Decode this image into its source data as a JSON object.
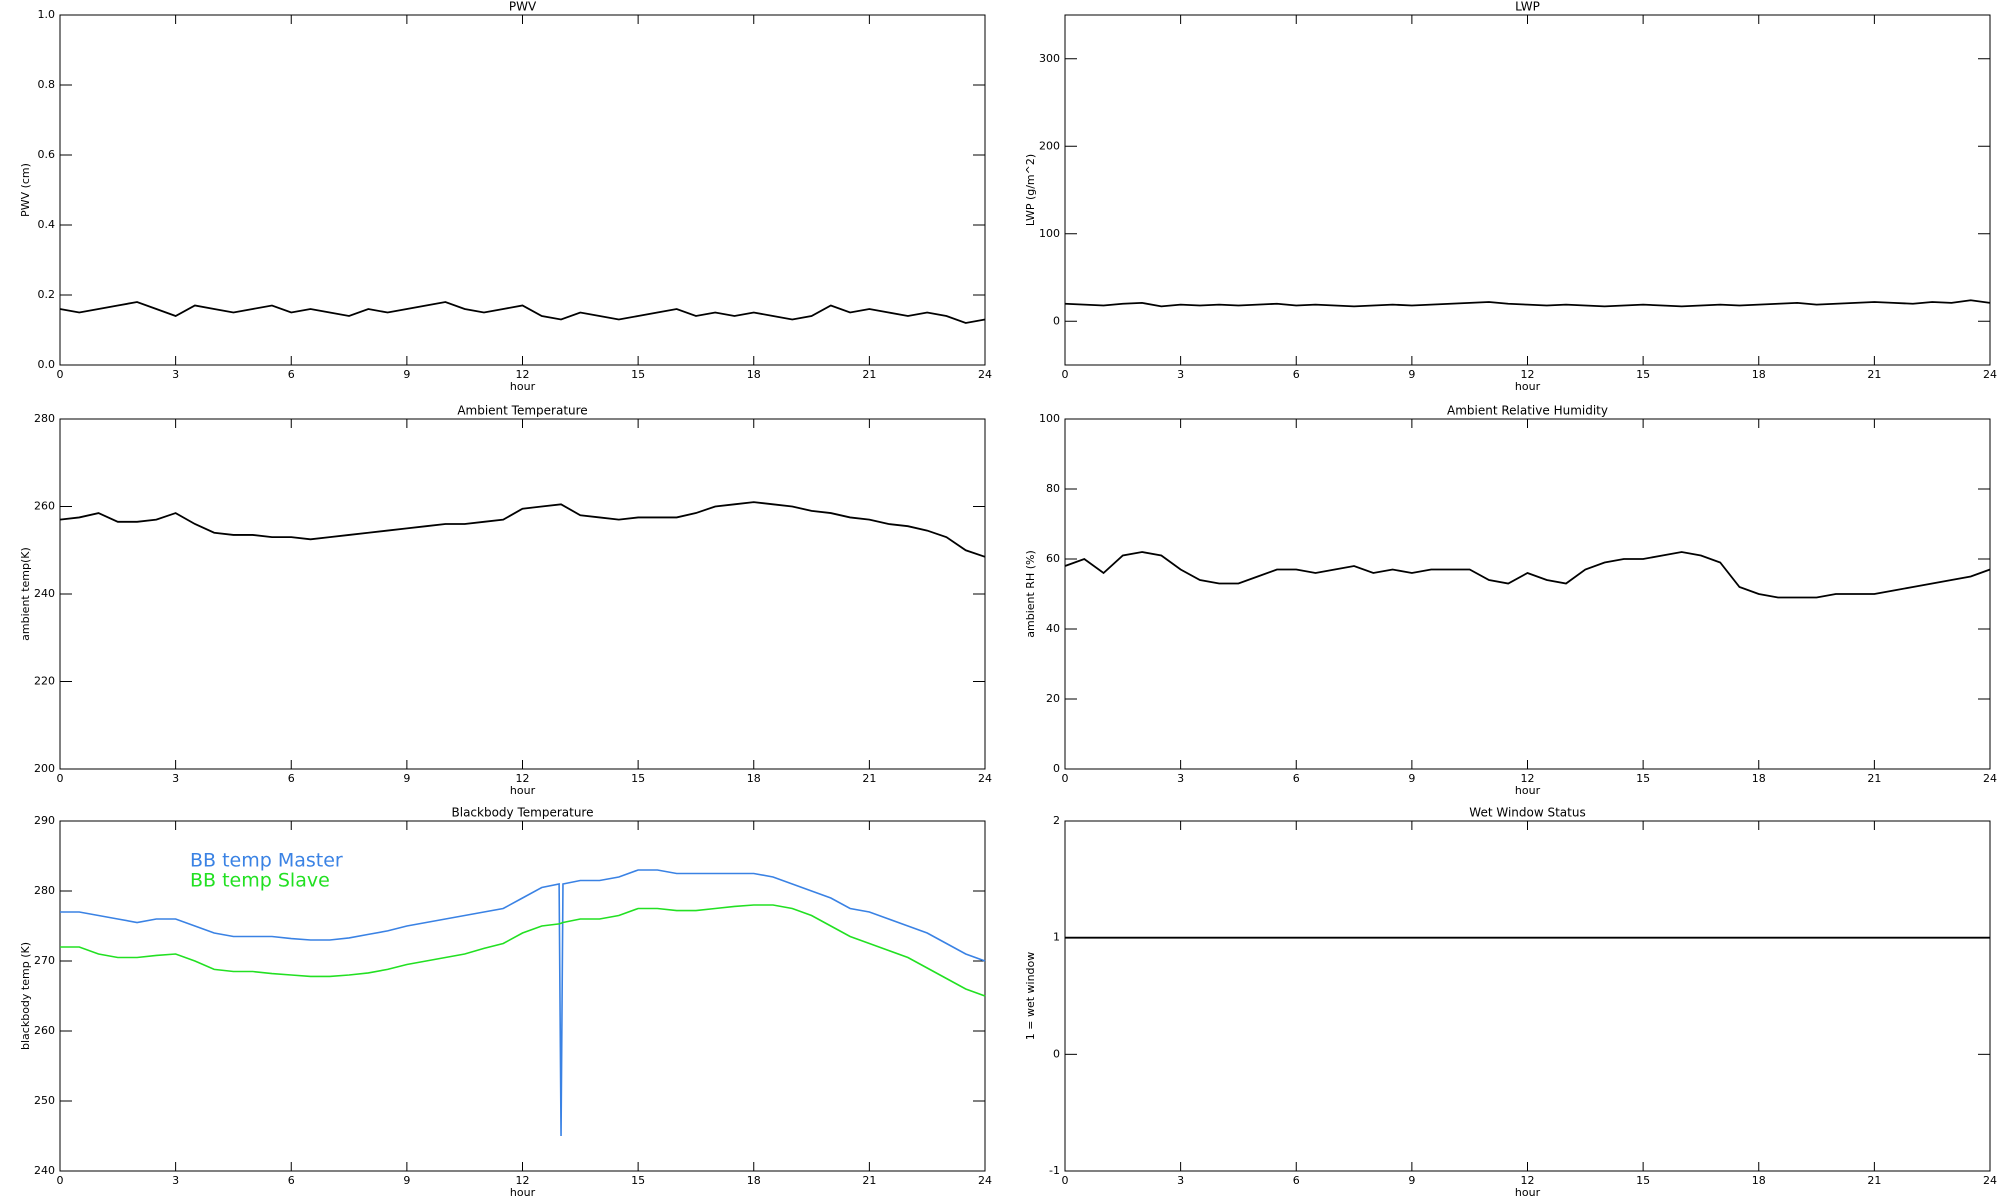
{
  "chart_data": [
    {
      "type": "line",
      "title": "PWV",
      "xlabel": "hour",
      "ylabel": "PWV (cm)",
      "color": "#000000",
      "x": [
        0,
        0.5,
        1,
        1.5,
        2,
        2.5,
        3,
        3.5,
        4,
        4.5,
        5,
        5.5,
        6,
        6.5,
        7,
        7.5,
        8,
        8.5,
        9,
        9.5,
        10,
        10.5,
        11,
        11.5,
        12,
        12.5,
        13,
        13.5,
        14,
        14.5,
        15,
        15.5,
        16,
        16.5,
        17,
        17.5,
        18,
        18.5,
        19,
        19.5,
        20,
        20.5,
        21,
        21.5,
        22,
        22.5,
        23,
        23.5,
        24
      ],
      "values": [
        0.16,
        0.15,
        0.16,
        0.17,
        0.18,
        0.16,
        0.14,
        0.17,
        0.16,
        0.15,
        0.16,
        0.17,
        0.15,
        0.16,
        0.15,
        0.14,
        0.16,
        0.15,
        0.16,
        0.17,
        0.18,
        0.16,
        0.15,
        0.16,
        0.17,
        0.14,
        0.13,
        0.15,
        0.14,
        0.13,
        0.14,
        0.15,
        0.16,
        0.14,
        0.15,
        0.14,
        0.15,
        0.14,
        0.13,
        0.14,
        0.17,
        0.15,
        0.16,
        0.15,
        0.14,
        0.15,
        0.14,
        0.12,
        0.13
      ],
      "xlim": [
        0,
        24
      ],
      "xticks": [
        0,
        3,
        6,
        9,
        12,
        15,
        18,
        21,
        24
      ],
      "ylim": [
        0,
        1
      ],
      "yticks": [
        {
          "value": 0,
          "label": "0.0"
        },
        0.2,
        0.4,
        0.6,
        0.8,
        {
          "value": 1,
          "label": "1.0"
        }
      ]
    },
    {
      "type": "line",
      "title": "LWP",
      "xlabel": "hour",
      "ylabel": "LWP (g/m^2)",
      "color": "#000000",
      "x": [
        0,
        0.5,
        1,
        1.5,
        2,
        2.5,
        3,
        3.5,
        4,
        4.5,
        5,
        5.5,
        6,
        6.5,
        7,
        7.5,
        8,
        8.5,
        9,
        9.5,
        10,
        10.5,
        11,
        11.5,
        12,
        12.5,
        13,
        13.5,
        14,
        14.5,
        15,
        15.5,
        16,
        16.5,
        17,
        17.5,
        18,
        18.5,
        19,
        19.5,
        20,
        20.5,
        21,
        21.5,
        22,
        22.5,
        23,
        23.5,
        24
      ],
      "values": [
        20,
        19,
        18,
        20,
        21,
        17,
        19,
        18,
        19,
        18,
        19,
        20,
        18,
        19,
        18,
        17,
        18,
        19,
        18,
        19,
        20,
        21,
        22,
        20,
        19,
        18,
        19,
        18,
        17,
        18,
        19,
        18,
        17,
        18,
        19,
        18,
        19,
        20,
        21,
        19,
        20,
        21,
        22,
        21,
        20,
        22,
        21,
        24,
        21
      ],
      "xlim": [
        0,
        24
      ],
      "xticks": [
        0,
        3,
        6,
        9,
        12,
        15,
        18,
        21,
        24
      ],
      "ylim": [
        -50,
        350
      ],
      "yticks": [
        0,
        100,
        200,
        300
      ]
    },
    {
      "type": "line",
      "title": "Ambient Temperature",
      "xlabel": "hour",
      "ylabel": "ambient temp(K)",
      "color": "#000000",
      "x": [
        0,
        0.5,
        1,
        1.5,
        2,
        2.5,
        3,
        3.5,
        4,
        4.5,
        5,
        5.5,
        6,
        6.5,
        7,
        7.5,
        8,
        8.5,
        9,
        9.5,
        10,
        10.5,
        11,
        11.5,
        12,
        12.5,
        13,
        13.5,
        14,
        14.5,
        15,
        15.5,
        16,
        16.5,
        17,
        17.5,
        18,
        18.5,
        19,
        19.5,
        20,
        20.5,
        21,
        21.5,
        22,
        22.5,
        23,
        23.5,
        24
      ],
      "values": [
        257,
        257.5,
        258.5,
        256.5,
        256.5,
        257,
        258.5,
        256,
        254,
        253.5,
        253.5,
        253,
        253,
        252.5,
        253,
        253.5,
        254,
        254.5,
        255,
        255.5,
        256,
        256,
        256.5,
        257,
        259.5,
        260,
        260.5,
        258,
        257.5,
        257,
        257.5,
        257.5,
        257.5,
        258.5,
        260,
        260.5,
        261,
        260.5,
        260,
        259,
        258.5,
        257.5,
        257,
        256,
        255.5,
        254.5,
        253,
        250,
        248.5
      ],
      "xlim": [
        0,
        24
      ],
      "xticks": [
        0,
        3,
        6,
        9,
        12,
        15,
        18,
        21,
        24
      ],
      "ylim": [
        200,
        280
      ],
      "yticks": [
        200,
        220,
        240,
        260,
        280
      ]
    },
    {
      "type": "line",
      "title": "Ambient Relative Humidity",
      "xlabel": "hour",
      "ylabel": "ambient RH (%)",
      "color": "#000000",
      "x": [
        0,
        0.5,
        1,
        1.5,
        2,
        2.5,
        3,
        3.5,
        4,
        4.5,
        5,
        5.5,
        6,
        6.5,
        7,
        7.5,
        8,
        8.5,
        9,
        9.5,
        10,
        10.5,
        11,
        11.5,
        12,
        12.5,
        13,
        13.5,
        14,
        14.5,
        15,
        15.5,
        16,
        16.5,
        17,
        17.5,
        18,
        18.5,
        19,
        19.5,
        20,
        20.5,
        21,
        21.5,
        22,
        22.5,
        23,
        23.5,
        24
      ],
      "values": [
        58,
        60,
        56,
        61,
        62,
        61,
        57,
        54,
        53,
        53,
        55,
        57,
        57,
        56,
        57,
        58,
        56,
        57,
        56,
        57,
        57,
        57,
        54,
        53,
        56,
        54,
        53,
        57,
        59,
        60,
        60,
        61,
        62,
        61,
        59,
        52,
        50,
        49,
        49,
        49,
        50,
        50,
        50,
        51,
        52,
        53,
        54,
        55,
        57
      ],
      "xlim": [
        0,
        24
      ],
      "xticks": [
        0,
        3,
        6,
        9,
        12,
        15,
        18,
        21,
        24
      ],
      "ylim": [
        0,
        100
      ],
      "yticks": [
        0,
        20,
        40,
        60,
        80,
        100
      ]
    },
    {
      "type": "line",
      "title": "Blackbody Temperature",
      "xlabel": "hour",
      "ylabel": "blackbody temp (K)",
      "legend": "upper left",
      "x": [
        0,
        0.5,
        1,
        1.5,
        2,
        2.5,
        3,
        3.5,
        4,
        4.5,
        5,
        5.5,
        6,
        6.5,
        7,
        7.5,
        8,
        8.5,
        9,
        9.5,
        10,
        10.5,
        11,
        11.5,
        12,
        12.5,
        12.95,
        13,
        13.05,
        13.5,
        14,
        14.5,
        15,
        15.5,
        16,
        16.5,
        17,
        17.5,
        18,
        18.5,
        19,
        19.5,
        20,
        20.5,
        21,
        21.5,
        22,
        22.5,
        23,
        23.5,
        24
      ],
      "series": [
        {
          "name": "BB temp Master",
          "color": "#3a82e4",
          "values": [
            277,
            277,
            276.5,
            276,
            275.5,
            276,
            276,
            275,
            274,
            273.5,
            273.5,
            273.5,
            273.2,
            273,
            273,
            273.3,
            273.8,
            274.3,
            275,
            275.5,
            276,
            276.5,
            277,
            277.5,
            279,
            280.5,
            281,
            245,
            281,
            281.5,
            281.5,
            282,
            283,
            283,
            282.5,
            282.5,
            282.5,
            282.5,
            282.5,
            282,
            281,
            280,
            279,
            277.5,
            277,
            276,
            275,
            274,
            272.5,
            271,
            270
          ]
        },
        {
          "name": "BB temp Slave",
          "color": "#22e022",
          "values": [
            272,
            272,
            271,
            270.5,
            270.5,
            270.8,
            271,
            270,
            268.8,
            268.5,
            268.5,
            268.2,
            268,
            267.8,
            267.8,
            268,
            268.3,
            268.8,
            269.5,
            270,
            270.5,
            271,
            271.8,
            272.5,
            274,
            275,
            275.3,
            275.4,
            275.5,
            276,
            276,
            276.5,
            277.5,
            277.5,
            277.2,
            277.2,
            277.5,
            277.8,
            278,
            278,
            277.5,
            276.5,
            275,
            273.5,
            272.5,
            271.5,
            270.5,
            269,
            267.5,
            266,
            265
          ]
        }
      ],
      "xlim": [
        0,
        24
      ],
      "xticks": [
        0,
        3,
        6,
        9,
        12,
        15,
        18,
        21,
        24
      ],
      "ylim": [
        240,
        290
      ],
      "yticks": [
        240,
        250,
        260,
        270,
        280,
        290
      ]
    },
    {
      "type": "line",
      "title": "Wet Window Status",
      "xlabel": "hour",
      "ylabel": "1 = wet window",
      "color": "#000000",
      "x": [
        0,
        24
      ],
      "values": [
        1,
        1
      ],
      "xlim": [
        0,
        24
      ],
      "xticks": [
        0,
        3,
        6,
        9,
        12,
        15,
        18,
        21,
        24
      ],
      "ylim": [
        -1,
        2
      ],
      "yticks": [
        -1,
        0,
        1,
        2
      ]
    }
  ]
}
